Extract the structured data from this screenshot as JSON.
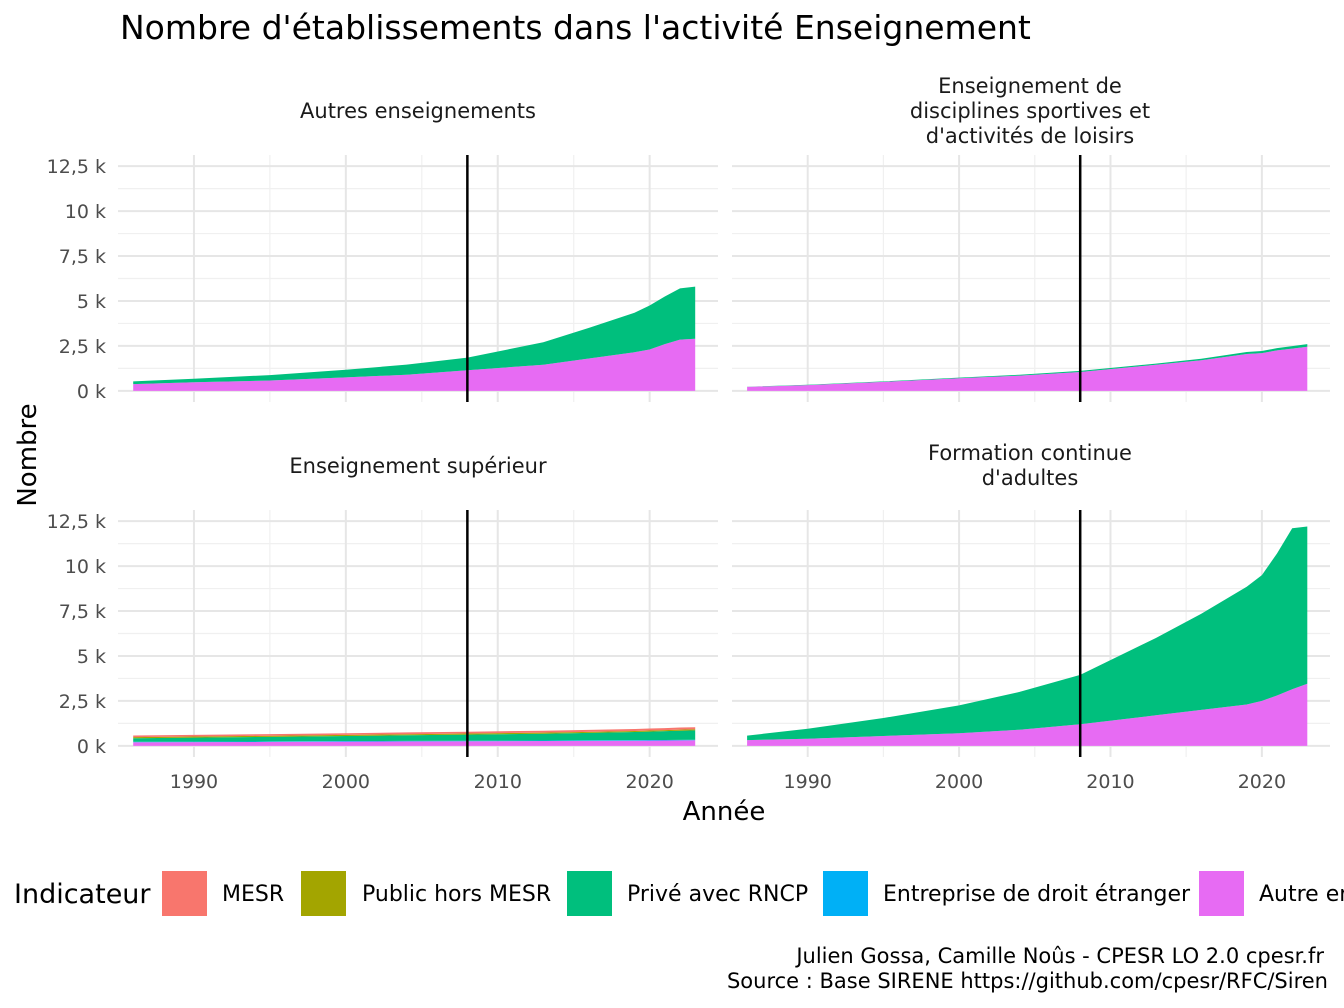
{
  "chart_data": {
    "type": "area",
    "stacked": true,
    "title": "Nombre d'établissements dans l'activité Enseignement",
    "xlabel": "Année",
    "ylabel": "Nombre",
    "xlim": [
      1985,
      2024.5
    ],
    "ylim": [
      0,
      12500
    ],
    "x_ticks": [
      1990,
      2000,
      2010,
      2020
    ],
    "y_ticks": [
      0,
      2500,
      5000,
      7500,
      10000,
      12500
    ],
    "y_tick_labels": [
      "0 k",
      "2,5 k",
      "5 k",
      "7,5 k",
      "10 k",
      "12,5 k"
    ],
    "vline_x": 2008,
    "grid": true,
    "legend": {
      "title": "Indicateur",
      "position": "bottom",
      "entries": [
        {
          "name": "MESR",
          "color": "#F8766D"
        },
        {
          "name": "Public hors MESR",
          "color": "#A3A500"
        },
        {
          "name": "Privé avec RNCP",
          "color": "#00BF7D"
        },
        {
          "name": "Entreprise de droit étranger",
          "color": "#00B0F6"
        },
        {
          "name": "Autre enseignement",
          "color": "#E76BF3"
        }
      ]
    },
    "caption": [
      "Julien Gossa, Camille Noûs - CPESR LO 2.0 cpesr.fr",
      "Source : Base SIRENE https://github.com/cpesr/RFC/Siren"
    ],
    "x": [
      1986,
      1990,
      1995,
      2000,
      2004,
      2008,
      2013,
      2016,
      2019,
      2020,
      2021,
      2022,
      2023
    ],
    "panels": [
      {
        "strip": [
          "Autres enseignements"
        ],
        "series": [
          {
            "name": "MESR",
            "values": [
              0,
              0,
              0,
              0,
              0,
              0,
              0,
              0,
              0,
              0,
              0,
              0,
              0
            ]
          },
          {
            "name": "Public hors MESR",
            "values": [
              0,
              0,
              0,
              0,
              0,
              0,
              0,
              0,
              0,
              0,
              0,
              0,
              0
            ]
          },
          {
            "name": "Privé avec RNCP",
            "values": [
              150,
              200,
              300,
              420,
              560,
              700,
              1250,
              1700,
              2200,
              2450,
              2650,
              2850,
              2900
            ]
          },
          {
            "name": "Entreprise de droit étranger",
            "values": [
              0,
              0,
              0,
              0,
              0,
              0,
              0,
              0,
              0,
              0,
              0,
              0,
              0
            ]
          },
          {
            "name": "Autre enseignement",
            "values": [
              380,
              480,
              580,
              750,
              900,
              1150,
              1450,
              1800,
              2150,
              2300,
              2600,
              2850,
              2900
            ]
          }
        ]
      },
      {
        "strip": [
          "Enseignement de",
          "disciplines sportives et",
          "d'activités de loisirs"
        ],
        "series": [
          {
            "name": "MESR",
            "values": [
              0,
              0,
              0,
              0,
              0,
              0,
              0,
              0,
              0,
              0,
              0,
              0,
              0
            ]
          },
          {
            "name": "Public hors MESR",
            "values": [
              0,
              0,
              0,
              0,
              0,
              0,
              0,
              0,
              0,
              0,
              0,
              0,
              0
            ]
          },
          {
            "name": "Privé avec RNCP",
            "values": [
              10,
              20,
              30,
              40,
              50,
              60,
              70,
              90,
              110,
              120,
              130,
              140,
              150
            ]
          },
          {
            "name": "Entreprise de droit étranger",
            "values": [
              0,
              0,
              0,
              0,
              0,
              0,
              0,
              0,
              0,
              0,
              0,
              0,
              0
            ]
          },
          {
            "name": "Autre enseignement",
            "values": [
              220,
              320,
              500,
              700,
              850,
              1050,
              1450,
              1700,
              2050,
              2100,
              2250,
              2350,
              2450
            ]
          }
        ]
      },
      {
        "strip": [
          "Enseignement supérieur"
        ],
        "series": [
          {
            "name": "MESR",
            "values": [
              90,
              90,
              95,
              95,
              100,
              100,
              105,
              110,
              110,
              110,
              110,
              115,
              115
            ]
          },
          {
            "name": "Public hors MESR",
            "values": [
              60,
              60,
              60,
              60,
              60,
              60,
              60,
              60,
              60,
              60,
              60,
              60,
              60
            ]
          },
          {
            "name": "Privé avec RNCP",
            "values": [
              200,
              220,
              250,
              280,
              310,
              340,
              380,
              410,
              450,
              470,
              490,
              510,
              520
            ]
          },
          {
            "name": "Entreprise de droit étranger",
            "values": [
              30,
              30,
              30,
              30,
              30,
              30,
              30,
              30,
              30,
              30,
              30,
              30,
              30
            ]
          },
          {
            "name": "Autre enseignement",
            "values": [
              200,
              210,
              220,
              240,
              250,
              260,
              270,
              280,
              290,
              295,
              300,
              305,
              310
            ]
          }
        ]
      },
      {
        "strip": [
          "Formation continue",
          "d'adultes"
        ],
        "series": [
          {
            "name": "MESR",
            "values": [
              0,
              0,
              0,
              0,
              0,
              0,
              0,
              0,
              0,
              0,
              0,
              0,
              0
            ]
          },
          {
            "name": "Public hors MESR",
            "values": [
              0,
              0,
              0,
              0,
              0,
              0,
              0,
              0,
              0,
              0,
              0,
              0,
              0
            ]
          },
          {
            "name": "Privé avec RNCP",
            "values": [
              250,
              550,
              1000,
              1550,
              2100,
              2750,
              4300,
              5350,
              6550,
              7000,
              7900,
              8950,
              8750
            ]
          },
          {
            "name": "Entreprise de droit étranger",
            "values": [
              0,
              0,
              0,
              0,
              0,
              0,
              0,
              0,
              0,
              0,
              0,
              0,
              0
            ]
          },
          {
            "name": "Autre enseignement",
            "values": [
              320,
              400,
              550,
              700,
              900,
              1200,
              1700,
              2000,
              2300,
              2500,
              2800,
              3150,
              3450
            ]
          }
        ]
      }
    ]
  }
}
